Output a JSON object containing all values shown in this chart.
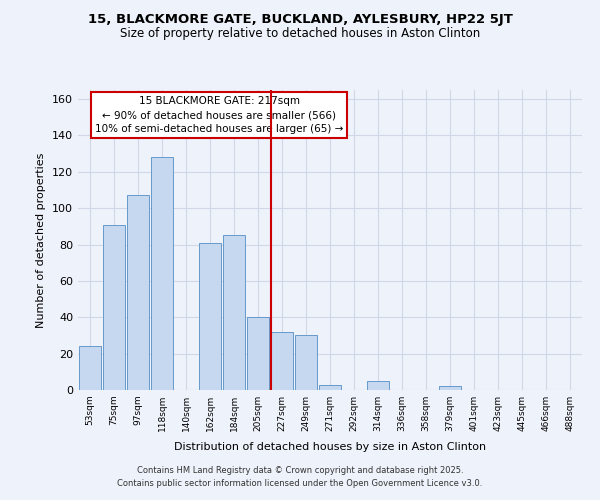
{
  "title_line1": "15, BLACKMORE GATE, BUCKLAND, AYLESBURY, HP22 5JT",
  "title_line2": "Size of property relative to detached houses in Aston Clinton",
  "xlabel": "Distribution of detached houses by size in Aston Clinton",
  "ylabel": "Number of detached properties",
  "bar_labels": [
    "53sqm",
    "75sqm",
    "97sqm",
    "118sqm",
    "140sqm",
    "162sqm",
    "184sqm",
    "205sqm",
    "227sqm",
    "249sqm",
    "271sqm",
    "292sqm",
    "314sqm",
    "336sqm",
    "358sqm",
    "379sqm",
    "401sqm",
    "423sqm",
    "445sqm",
    "466sqm",
    "488sqm"
  ],
  "bar_heights": [
    24,
    91,
    107,
    128,
    0,
    81,
    85,
    40,
    32,
    30,
    3,
    0,
    5,
    0,
    0,
    2,
    0,
    0,
    0,
    0,
    0
  ],
  "bar_color": "#c5d8f0",
  "bar_edge_color": "#6699cc",
  "vline_color": "#cc0000",
  "vline_x_idx": 8.0,
  "annotation_title": "15 BLACKMORE GATE: 217sqm",
  "annotation_line1": "← 90% of detached houses are smaller (566)",
  "annotation_line2": "10% of semi-detached houses are larger (65) →",
  "ylim": [
    0,
    165
  ],
  "yticks": [
    0,
    20,
    40,
    60,
    80,
    100,
    120,
    140,
    160
  ],
  "footer_line1": "Contains HM Land Registry data © Crown copyright and database right 2025.",
  "footer_line2": "Contains public sector information licensed under the Open Government Licence v3.0.",
  "background_color": "#eef2fa",
  "grid_color": "#d0d8e8"
}
